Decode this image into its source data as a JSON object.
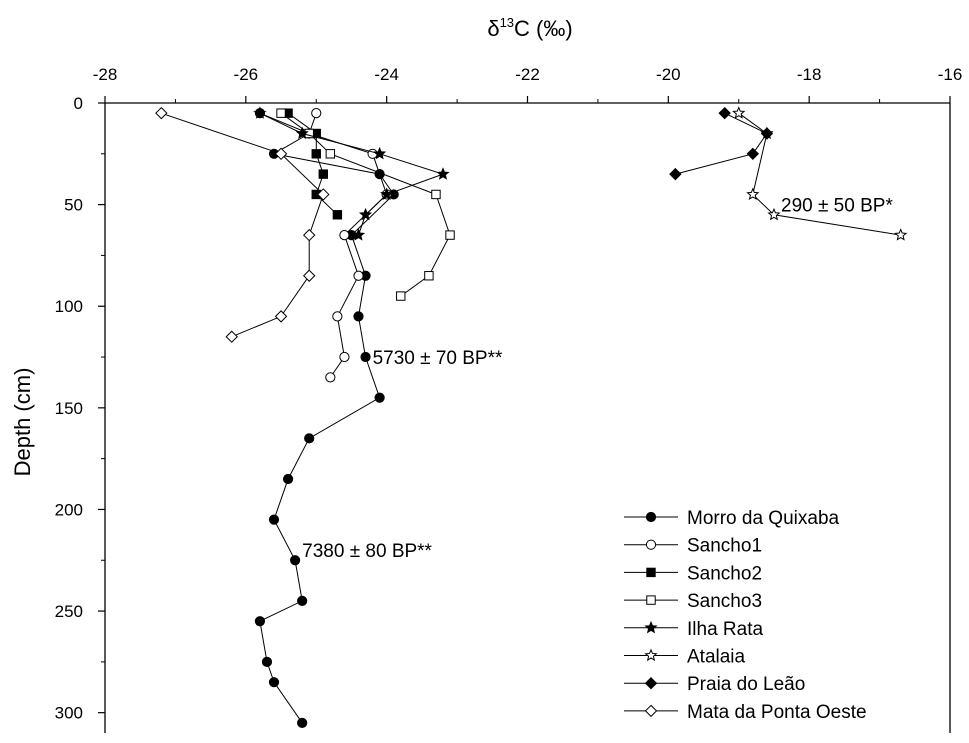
{
  "chart_data": {
    "type": "line",
    "title": "",
    "xlabel_main": "δ",
    "xlabel_sup": "13",
    "xlabel_rest": "C (‰)",
    "ylabel": "Depth (cm)",
    "xlim": [
      -28,
      -16
    ],
    "ylim": [
      0,
      310
    ],
    "y_inverted": true,
    "x_axis_position": "top",
    "grid": false,
    "legend_position": "bottom-right",
    "x_ticks": [
      -28,
      -26,
      -24,
      -22,
      -20,
      -18,
      -16
    ],
    "y_ticks": [
      0,
      50,
      100,
      150,
      200,
      250,
      300
    ],
    "series": [
      {
        "name": "Morro da Quixaba",
        "marker": "circle",
        "filled": true,
        "points": [
          [
            -25.8,
            5
          ],
          [
            -25.1,
            15
          ],
          [
            -25.6,
            25
          ],
          [
            -24.1,
            35
          ],
          [
            -23.9,
            45
          ],
          [
            -24.5,
            65
          ],
          [
            -24.3,
            85
          ],
          [
            -24.4,
            105
          ],
          [
            -24.3,
            125
          ],
          [
            -24.1,
            145
          ],
          [
            -25.1,
            165
          ],
          [
            -25.4,
            185
          ],
          [
            -25.6,
            205
          ],
          [
            -25.3,
            225
          ],
          [
            -25.2,
            245
          ],
          [
            -25.8,
            255
          ],
          [
            -25.7,
            275
          ],
          [
            -25.6,
            285
          ],
          [
            -25.2,
            305
          ]
        ]
      },
      {
        "name": "Sancho1",
        "marker": "circle",
        "filled": false,
        "points": [
          [
            -25.0,
            5
          ],
          [
            -25.1,
            15
          ],
          [
            -24.2,
            25
          ],
          [
            -24.0,
            45
          ],
          [
            -24.6,
            65
          ],
          [
            -24.4,
            85
          ],
          [
            -24.7,
            105
          ],
          [
            -24.6,
            125
          ],
          [
            -24.8,
            135
          ]
        ]
      },
      {
        "name": "Sancho2",
        "marker": "square",
        "filled": true,
        "points": [
          [
            -25.4,
            5
          ],
          [
            -25.0,
            15
          ],
          [
            -25.0,
            25
          ],
          [
            -24.9,
            35
          ],
          [
            -25.0,
            45
          ],
          [
            -24.7,
            55
          ]
        ]
      },
      {
        "name": "Sancho3",
        "marker": "square",
        "filled": false,
        "points": [
          [
            -25.5,
            5
          ],
          [
            -25.1,
            15
          ],
          [
            -24.8,
            25
          ],
          [
            -23.3,
            45
          ],
          [
            -23.1,
            65
          ],
          [
            -23.4,
            85
          ],
          [
            -23.8,
            95
          ]
        ]
      },
      {
        "name": "Ilha Rata",
        "marker": "star",
        "filled": true,
        "points": [
          [
            -25.8,
            5
          ],
          [
            -25.2,
            15
          ],
          [
            -24.1,
            25
          ],
          [
            -23.2,
            35
          ],
          [
            -24.0,
            45
          ],
          [
            -24.3,
            55
          ],
          [
            -24.4,
            65
          ]
        ]
      },
      {
        "name": "Atalaia",
        "marker": "star",
        "filled": false,
        "points": [
          [
            -19.0,
            5
          ],
          [
            -18.6,
            15
          ],
          [
            -18.8,
            45
          ],
          [
            -18.5,
            55
          ],
          [
            -16.7,
            65
          ]
        ]
      },
      {
        "name": "Praia do Leão",
        "marker": "diamond",
        "filled": true,
        "points": [
          [
            -19.2,
            5
          ],
          [
            -18.6,
            15
          ],
          [
            -18.8,
            25
          ],
          [
            -19.9,
            35
          ]
        ]
      },
      {
        "name": "Mata da Ponta Oeste",
        "marker": "diamond",
        "filled": false,
        "points": [
          [
            -27.2,
            5
          ],
          [
            -25.5,
            25
          ],
          [
            -24.9,
            45
          ],
          [
            -25.1,
            65
          ],
          [
            -25.1,
            85
          ],
          [
            -25.5,
            105
          ],
          [
            -26.2,
            115
          ]
        ]
      }
    ],
    "annotations": [
      {
        "text": "290 ± 50 BP*",
        "x": -18.4,
        "y": 50
      },
      {
        "text": "5730 ± 70 BP**",
        "x": -24.2,
        "y": 125
      },
      {
        "text": "7380 ± 80 BP**",
        "x": -25.2,
        "y": 220
      }
    ]
  }
}
